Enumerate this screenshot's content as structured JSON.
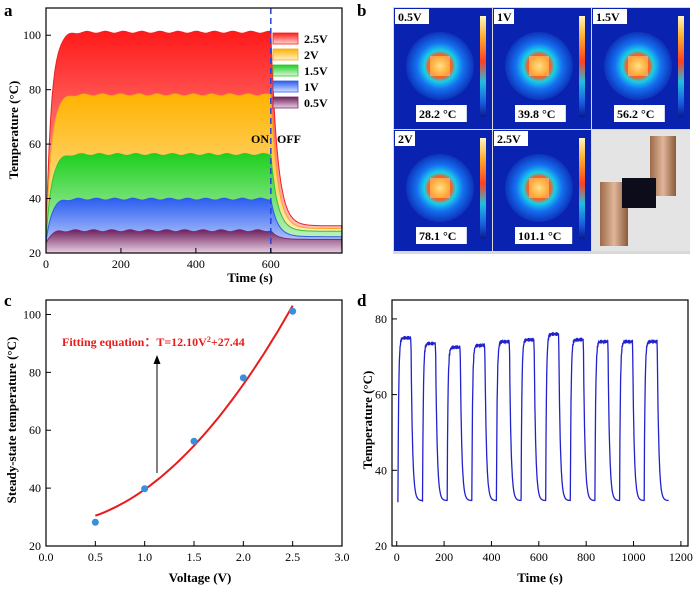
{
  "panels": {
    "a": "a",
    "b": "b",
    "c": "c",
    "d": "d"
  },
  "colors": {
    "red": "#ee1111",
    "blue_line": "#2222cc",
    "dash": "#2244dd",
    "fit": "#e81b1b",
    "point": "#3a8fdc"
  },
  "chart_data": [
    {
      "id": "a",
      "type": "area",
      "title": "",
      "xlabel": "Time (s)",
      "ylabel": "Temperature (°C)",
      "xlim": [
        0,
        790
      ],
      "ylim": [
        20,
        110
      ],
      "xticks": [
        "0",
        "200",
        "400",
        "600"
      ],
      "yticks": [
        "20",
        "40",
        "60",
        "80",
        "100"
      ],
      "switch_time": 600,
      "on_label": "ON",
      "off_label": "OFF",
      "series": [
        {
          "name": "2.5V",
          "plateau": 101.1,
          "end": 30,
          "color": "#ee2222"
        },
        {
          "name": "2V",
          "plateau": 78.1,
          "end": 29,
          "color": "#f6a623"
        },
        {
          "name": "1.5V",
          "plateau": 56.2,
          "end": 28,
          "color": "#36c236"
        },
        {
          "name": "1V",
          "plateau": 39.8,
          "end": 26,
          "color": "#2d5fe0"
        },
        {
          "name": "0.5V",
          "plateau": 28.2,
          "end": 25,
          "color": "#7a2b6a"
        }
      ]
    },
    {
      "id": "b",
      "type": "image-grid",
      "cells": [
        {
          "voltage": "0.5V",
          "temp": "28.2 °C"
        },
        {
          "voltage": "1V",
          "temp": "39.8 °C"
        },
        {
          "voltage": "1.5V",
          "temp": "56.2 °C"
        },
        {
          "voltage": "2V",
          "temp": "78.1 °C"
        },
        {
          "voltage": "2.5V",
          "temp": "101.1 °C"
        }
      ]
    },
    {
      "id": "c",
      "type": "scatter",
      "xlabel": "Voltage (V)",
      "ylabel": "Steady-state temperature (°C)",
      "xlim": [
        0,
        3
      ],
      "ylim": [
        20,
        105
      ],
      "xticks": [
        "0.0",
        "0.5",
        "1.0",
        "1.5",
        "2.0",
        "2.5",
        "3.0"
      ],
      "yticks": [
        "20",
        "40",
        "60",
        "80",
        "100"
      ],
      "x": [
        0.5,
        1.0,
        1.5,
        2.0,
        2.5
      ],
      "y": [
        28.2,
        39.8,
        56.2,
        78.1,
        101.1
      ],
      "fit": {
        "a": 12.1,
        "c": 27.44,
        "label_prefix": "Fitting equation：T=12.10V",
        "label_exp": "2",
        "label_suffix": "+27.44"
      }
    },
    {
      "id": "d",
      "type": "line",
      "xlabel": "Time (s)",
      "ylabel": "Temperature (°C)",
      "xlim": [
        -20,
        1230
      ],
      "ylim": [
        20,
        85
      ],
      "xticks": [
        "0",
        "200",
        "400",
        "600",
        "800",
        "1000",
        "1200"
      ],
      "yticks": [
        "20",
        "40",
        "60",
        "80"
      ],
      "cycles": 11,
      "period": 104,
      "start": 5,
      "on_duration": 55,
      "low": 32,
      "peaks": [
        75,
        73.5,
        72.5,
        73,
        74,
        74.5,
        76,
        74.5,
        74,
        74,
        74
      ]
    }
  ]
}
